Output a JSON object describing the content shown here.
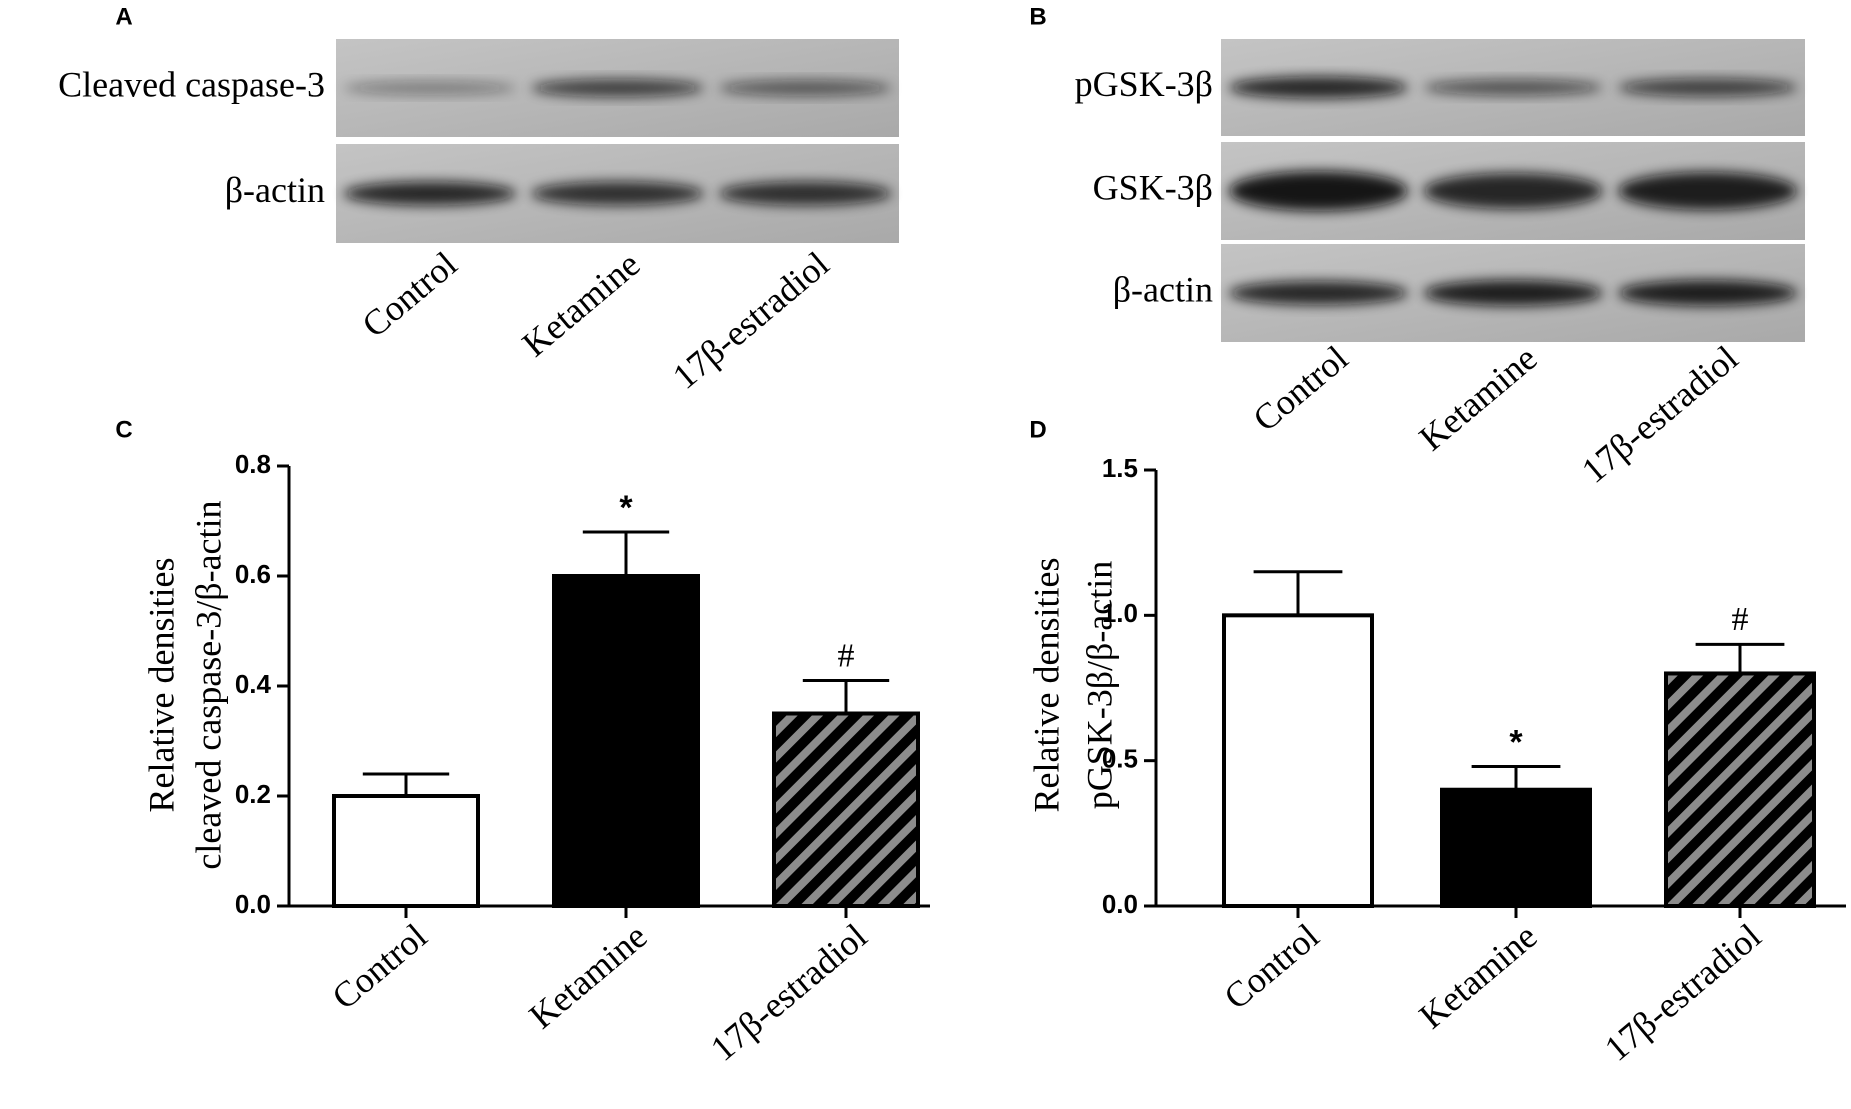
{
  "blots": [
    {
      "panel": "A",
      "rows": [
        "Cleaved caspase-3",
        "β-actin"
      ],
      "lanes": [
        "Control",
        "Ketamine",
        "17β-estradiol"
      ]
    },
    {
      "panel": "B",
      "rows": [
        "pGSK-3β",
        "GSK-3β",
        "β-actin"
      ],
      "lanes": [
        "Control",
        "Ketamine",
        "17β-estradiol"
      ]
    }
  ],
  "chart_data": [
    {
      "type": "bar",
      "panel": "C",
      "y_label": [
        "Relative densities",
        "cleaved caspase-3/β-actin"
      ],
      "categories": [
        "Control",
        "Ketamine",
        "17β-estradiol"
      ],
      "values": [
        0.2,
        0.6,
        0.35
      ],
      "errors": [
        0.04,
        0.08,
        0.06
      ],
      "annotations": [
        null,
        "*",
        "#"
      ],
      "colors": [
        "#ffffff",
        "#000000",
        "#000000"
      ],
      "hatched": [
        false,
        false,
        true
      ],
      "hatch_color": "#8c8c8c",
      "ylim": [
        0,
        0.8
      ],
      "yticks": [
        {
          "value": 0,
          "label": "0.0"
        },
        0.2,
        0.4,
        0.6,
        0.8
      ]
    },
    {
      "type": "bar",
      "panel": "D",
      "y_label": [
        "Relative densities",
        "pGSK-3β/β-actin"
      ],
      "categories": [
        "Control",
        "Ketamine",
        "17β-estradiol"
      ],
      "values": [
        1.0,
        0.4,
        0.8
      ],
      "errors": [
        0.15,
        0.08,
        0.1
      ],
      "annotations": [
        null,
        "*",
        "#"
      ],
      "colors": [
        "#ffffff",
        "#000000",
        "#000000"
      ],
      "hatched": [
        false,
        false,
        true
      ],
      "hatch_color": "#8c8c8c",
      "ylim": [
        0,
        1.5
      ],
      "yticks": [
        {
          "value": 0,
          "label": "0.0"
        },
        0.5,
        {
          "value": 1,
          "label": "1.0"
        },
        1.5
      ]
    }
  ]
}
